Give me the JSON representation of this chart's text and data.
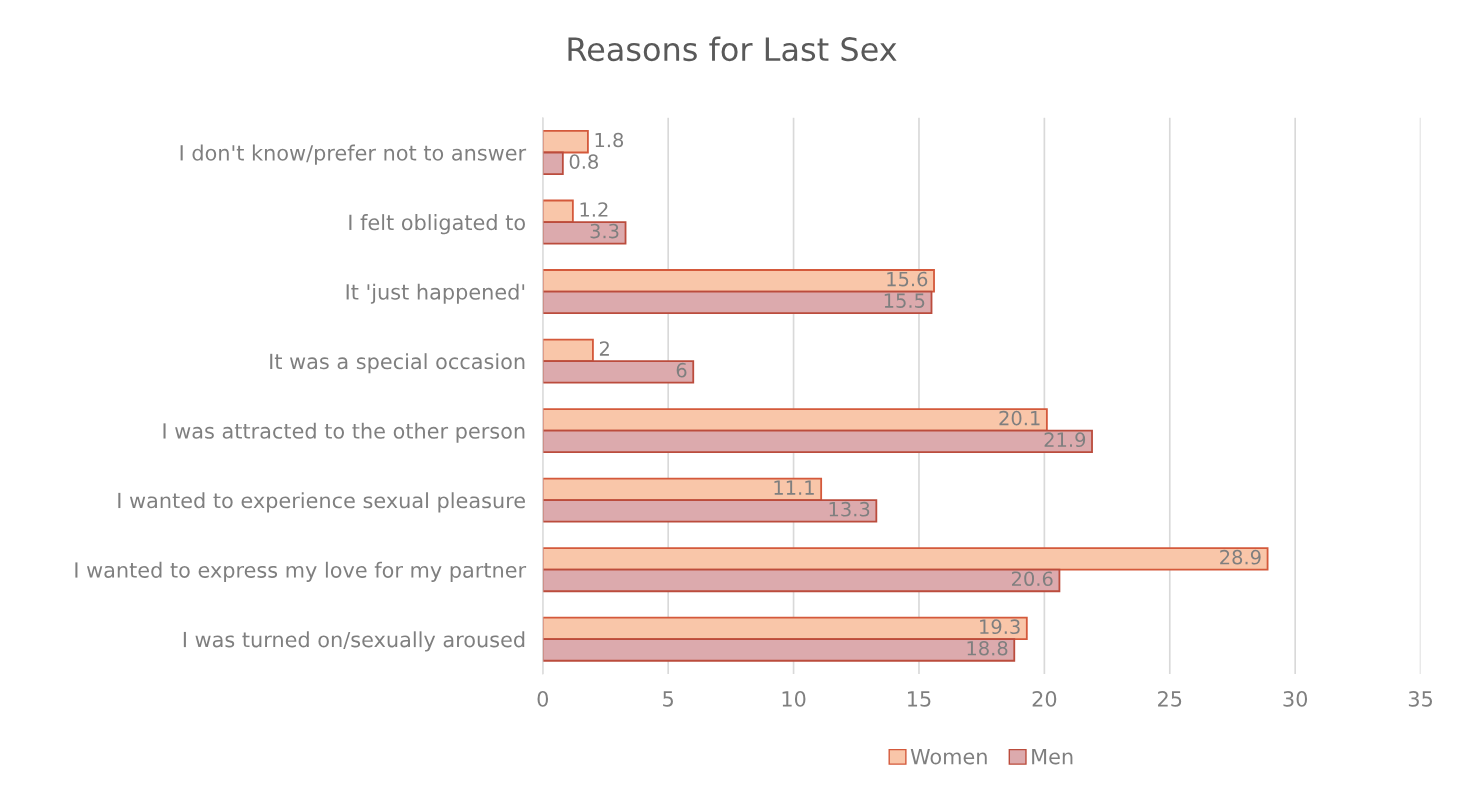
{
  "chart_data": {
    "type": "bar",
    "orientation": "horizontal",
    "title": "Reasons for Last Sex",
    "categories": [
      "I don't know/prefer not to answer",
      "I felt obligated to",
      "It 'just happened'",
      "It was a special occasion",
      "I was attracted to the other person",
      "I wanted to experience sexual pleasure",
      "I wanted to express my love for my partner",
      "I was turned on/sexually aroused"
    ],
    "series": [
      {
        "name": "Women",
        "color": "#f9c6a9",
        "values": [
          1.8,
          1.2,
          15.6,
          2,
          20.1,
          11.1,
          28.9,
          19.3
        ]
      },
      {
        "name": "Men",
        "color": "#dcaaad",
        "values": [
          0.8,
          3.3,
          15.5,
          6,
          21.9,
          13.3,
          20.6,
          18.8
        ]
      }
    ],
    "xlim": [
      0,
      35
    ],
    "xticks": [
      0,
      5,
      10,
      15,
      20,
      25,
      30,
      35
    ],
    "grid": "x",
    "legend": "bottom",
    "data_labels": true
  }
}
